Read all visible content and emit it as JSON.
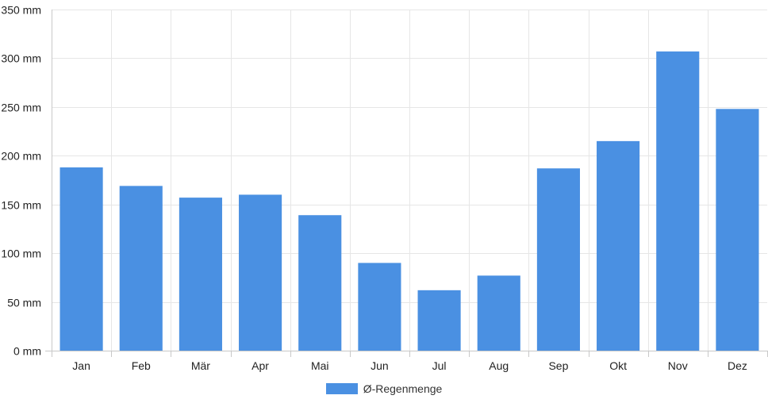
{
  "chart_data": {
    "type": "bar",
    "categories": [
      "Jan",
      "Feb",
      "Mär",
      "Apr",
      "Mai",
      "Jun",
      "Jul",
      "Aug",
      "Sep",
      "Okt",
      "Nov",
      "Dez"
    ],
    "series": [
      {
        "name": "Ø-Regenmenge",
        "values": [
          188,
          169,
          157,
          160,
          139,
          90,
          62,
          77,
          187,
          215,
          307,
          248
        ],
        "color": "#4a90e2"
      }
    ],
    "y_unit": "mm",
    "ylim": [
      0,
      350
    ],
    "y_ticks": [
      0,
      50,
      100,
      150,
      200,
      250,
      300,
      350
    ],
    "y_tick_labels": [
      "0 mm",
      "50 mm",
      "100 mm",
      "150 mm",
      "200 mm",
      "250 mm",
      "300 mm",
      "350 mm"
    ],
    "grid": true,
    "legend_position": "bottom-center"
  }
}
